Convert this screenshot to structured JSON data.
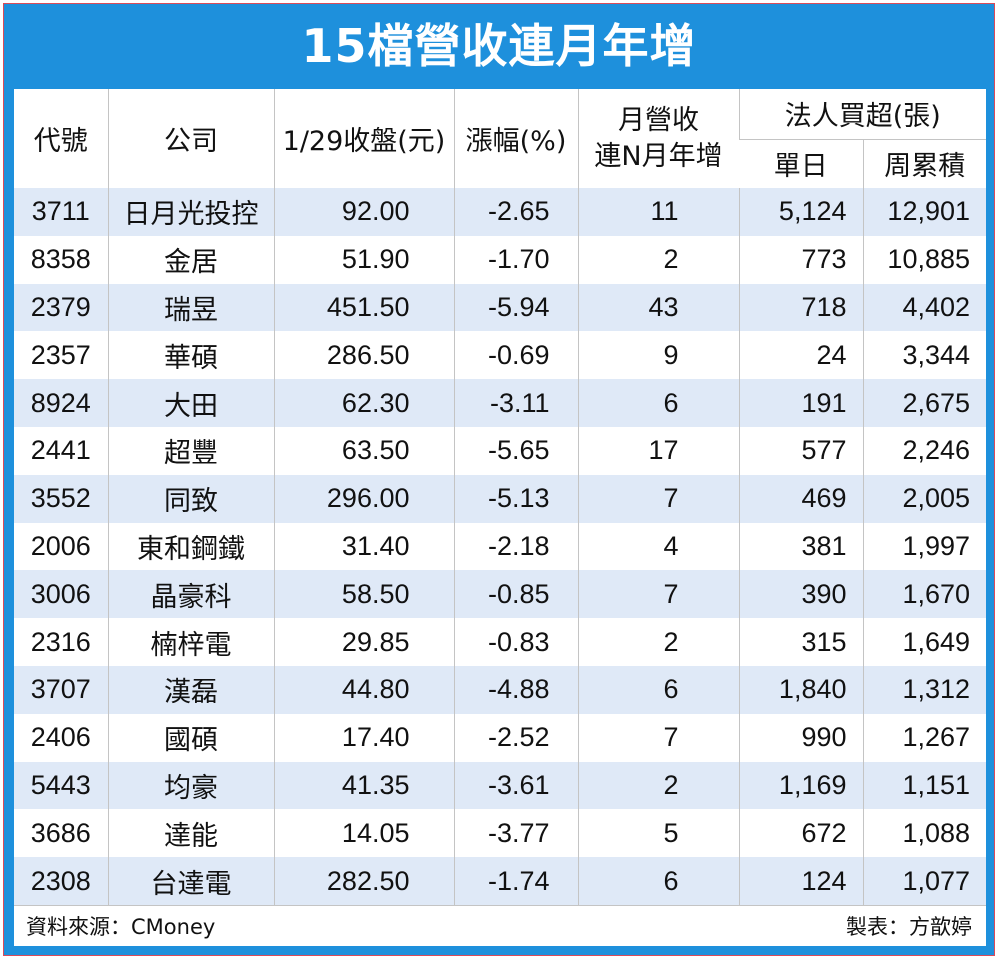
{
  "title": "15檔營收連月年增",
  "headers": {
    "code": "代號",
    "company": "公司",
    "close": "1/29收盤(元)",
    "change": "漲幅(%)",
    "months_line1": "月營收",
    "months_line2": "連N月年增",
    "institutional": "法人買超(張)",
    "single_day": "單日",
    "weekly": "周累積"
  },
  "rows": [
    {
      "code": "3711",
      "company": "日月光投控",
      "close": "92.00",
      "change": "-2.65",
      "months": "11",
      "single": "5,124",
      "weekly": "12,901"
    },
    {
      "code": "8358",
      "company": "金居",
      "close": "51.90",
      "change": "-1.70",
      "months": "2",
      "single": "773",
      "weekly": "10,885"
    },
    {
      "code": "2379",
      "company": "瑞昱",
      "close": "451.50",
      "change": "-5.94",
      "months": "43",
      "single": "718",
      "weekly": "4,402"
    },
    {
      "code": "2357",
      "company": "華碩",
      "close": "286.50",
      "change": "-0.69",
      "months": "9",
      "single": "24",
      "weekly": "3,344"
    },
    {
      "code": "8924",
      "company": "大田",
      "close": "62.30",
      "change": "-3.11",
      "months": "6",
      "single": "191",
      "weekly": "2,675"
    },
    {
      "code": "2441",
      "company": "超豐",
      "close": "63.50",
      "change": "-5.65",
      "months": "17",
      "single": "577",
      "weekly": "2,246"
    },
    {
      "code": "3552",
      "company": "同致",
      "close": "296.00",
      "change": "-5.13",
      "months": "7",
      "single": "469",
      "weekly": "2,005"
    },
    {
      "code": "2006",
      "company": "東和鋼鐵",
      "close": "31.40",
      "change": "-2.18",
      "months": "4",
      "single": "381",
      "weekly": "1,997"
    },
    {
      "code": "3006",
      "company": "晶豪科",
      "close": "58.50",
      "change": "-0.85",
      "months": "7",
      "single": "390",
      "weekly": "1,670"
    },
    {
      "code": "2316",
      "company": "楠梓電",
      "close": "29.85",
      "change": "-0.83",
      "months": "2",
      "single": "315",
      "weekly": "1,649"
    },
    {
      "code": "3707",
      "company": "漢磊",
      "close": "44.80",
      "change": "-4.88",
      "months": "6",
      "single": "1,840",
      "weekly": "1,312"
    },
    {
      "code": "2406",
      "company": "國碩",
      "close": "17.40",
      "change": "-2.52",
      "months": "7",
      "single": "990",
      "weekly": "1,267"
    },
    {
      "code": "5443",
      "company": "均豪",
      "close": "41.35",
      "change": "-3.61",
      "months": "2",
      "single": "1,169",
      "weekly": "1,151"
    },
    {
      "code": "3686",
      "company": "達能",
      "close": "14.05",
      "change": "-3.77",
      "months": "5",
      "single": "672",
      "weekly": "1,088"
    },
    {
      "code": "2308",
      "company": "台達電",
      "close": "282.50",
      "change": "-1.74",
      "months": "6",
      "single": "124",
      "weekly": "1,077"
    }
  ],
  "footer": {
    "source": "資料來源：CMoney",
    "maker": "製表：方歆婷"
  }
}
